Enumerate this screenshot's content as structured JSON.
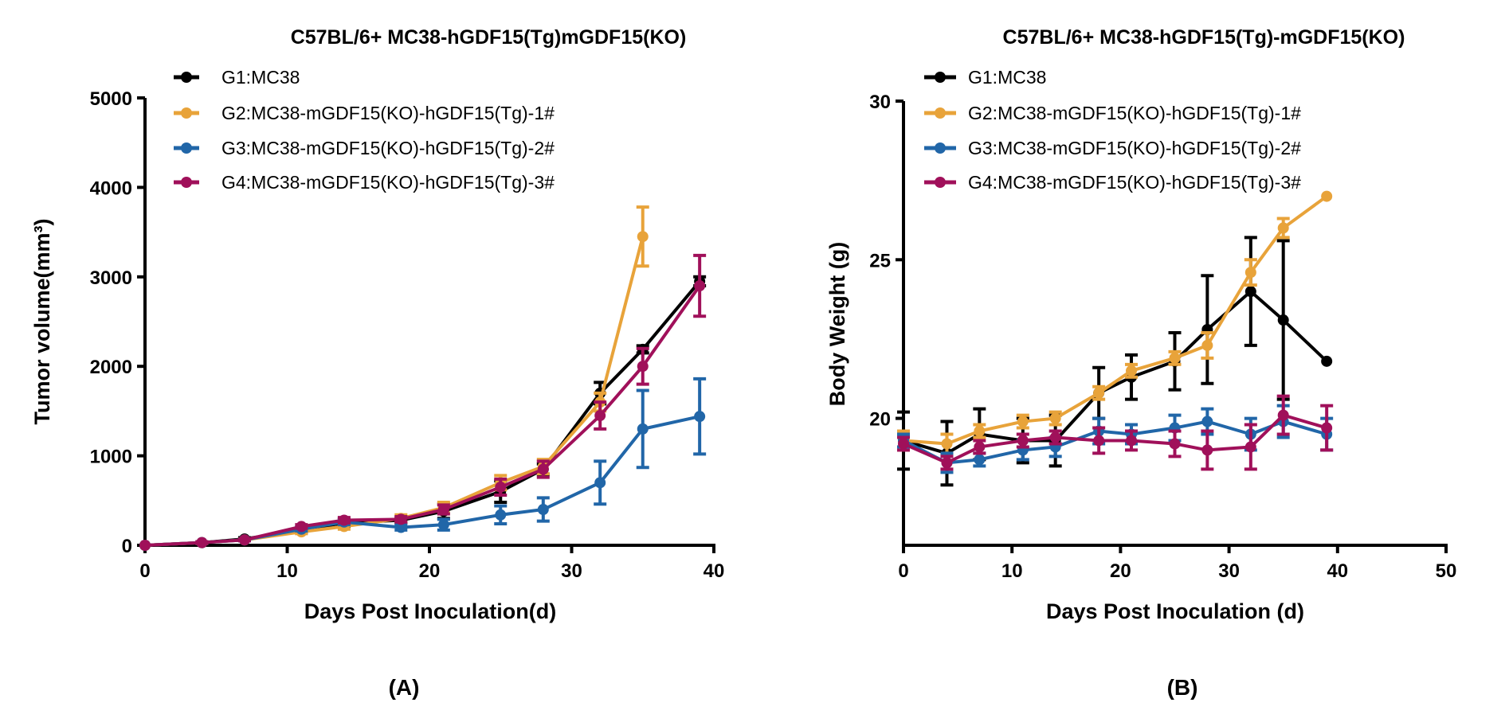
{
  "chart_data": [
    {
      "type": "line",
      "panel_label": "(A)",
      "title": "C57BL/6+ MC38-hGDF15(Tg)mGDF15(KO)",
      "xlabel": "Days Post Inoculation(d)",
      "ylabel": "Tumor volume(mm³)",
      "xlim": [
        0,
        40
      ],
      "ylim": [
        0,
        5000
      ],
      "xticks": [
        0,
        10,
        20,
        30,
        40
      ],
      "yticks": [
        0,
        1000,
        2000,
        3000,
        4000,
        5000
      ],
      "legend_position": "top-left",
      "x": [
        0,
        4,
        7,
        11,
        14,
        18,
        21,
        25,
        28,
        32,
        35,
        39
      ],
      "series": [
        {
          "name": "G1:MC38",
          "color": "#000000",
          "values": [
            0,
            30,
            70,
            170,
            250,
            280,
            380,
            600,
            850,
            1700,
            2190,
            2950
          ],
          "errors": [
            0,
            10,
            15,
            30,
            40,
            30,
            80,
            120,
            60,
            120,
            40,
            50
          ]
        },
        {
          "name": "G2:MC38-mGDF15(KO)-hGDF15(Tg)-1#",
          "color": "#E8A33A",
          "values": [
            0,
            30,
            60,
            150,
            210,
            300,
            420,
            700,
            880,
            1600,
            3450,
            null
          ],
          "errors": [
            0,
            10,
            10,
            20,
            30,
            40,
            60,
            80,
            80,
            100,
            330,
            null
          ]
        },
        {
          "name": "G3:MC38-mGDF15(KO)-hGDF15(Tg)-2#",
          "color": "#2166A8",
          "values": [
            0,
            30,
            60,
            180,
            260,
            200,
            230,
            340,
            400,
            700,
            1300,
            1440
          ],
          "errors": [
            0,
            10,
            10,
            20,
            30,
            30,
            60,
            100,
            130,
            240,
            430,
            420
          ]
        },
        {
          "name": "G4:MC38-mGDF15(KO)-hGDF15(Tg)-3#",
          "color": "#A0105A",
          "values": [
            0,
            30,
            60,
            210,
            280,
            290,
            400,
            650,
            850,
            1450,
            2000,
            2900
          ],
          "errors": [
            0,
            10,
            10,
            20,
            30,
            30,
            50,
            90,
            90,
            150,
            200,
            340
          ]
        }
      ]
    },
    {
      "type": "line",
      "panel_label": "(B)",
      "title": "C57BL/6+ MC38-hGDF15(Tg)-mGDF15(KO)",
      "xlabel": "Days Post Inoculation (d)",
      "ylabel": "Body Weight (g)",
      "xlim": [
        0,
        50
      ],
      "ylim": [
        16,
        30
      ],
      "xticks": [
        0,
        10,
        20,
        30,
        40,
        50
      ],
      "yticks": [
        20,
        25,
        30
      ],
      "legend_position": "top-left",
      "x": [
        0,
        4,
        7,
        11,
        14,
        18,
        21,
        25,
        28,
        32,
        35,
        39
      ],
      "series": [
        {
          "name": "G1:MC38",
          "color": "#000000",
          "values": [
            19.3,
            18.9,
            19.5,
            19.3,
            19.3,
            20.8,
            21.3,
            21.8,
            22.8,
            24.0,
            23.1,
            21.8
          ],
          "errors": [
            0.9,
            1.0,
            0.8,
            0.7,
            0.8,
            0.8,
            0.7,
            0.9,
            1.7,
            1.7,
            2.5,
            0
          ]
        },
        {
          "name": "G2:MC38-mGDF15(KO)-hGDF15(Tg)-1#",
          "color": "#E8A33A",
          "values": [
            19.3,
            19.2,
            19.6,
            19.9,
            20.0,
            20.8,
            21.5,
            21.9,
            22.3,
            24.6,
            26.0,
            27.0
          ],
          "errors": [
            0.3,
            0.3,
            0.2,
            0.2,
            0.2,
            0.2,
            0.2,
            0.2,
            0.4,
            0.4,
            0.3,
            0
          ]
        },
        {
          "name": "G3:MC38-mGDF15(KO)-hGDF15(Tg)-2#",
          "color": "#2166A8",
          "values": [
            19.3,
            18.6,
            18.7,
            19.0,
            19.1,
            19.6,
            19.5,
            19.7,
            19.9,
            19.5,
            19.9,
            19.5
          ],
          "errors": [
            0.2,
            0.3,
            0.2,
            0.3,
            0.3,
            0.4,
            0.3,
            0.4,
            0.4,
            0.5,
            0.5,
            0.5
          ]
        },
        {
          "name": "G4:MC38-mGDF15(KO)-hGDF15(Tg)-3#",
          "color": "#A0105A",
          "values": [
            19.2,
            18.6,
            19.1,
            19.3,
            19.4,
            19.3,
            19.3,
            19.2,
            19.0,
            19.1,
            20.1,
            19.7
          ],
          "errors": [
            0.2,
            0.2,
            0.2,
            0.2,
            0.2,
            0.4,
            0.3,
            0.4,
            0.6,
            0.7,
            0.6,
            0.7
          ]
        }
      ]
    }
  ]
}
